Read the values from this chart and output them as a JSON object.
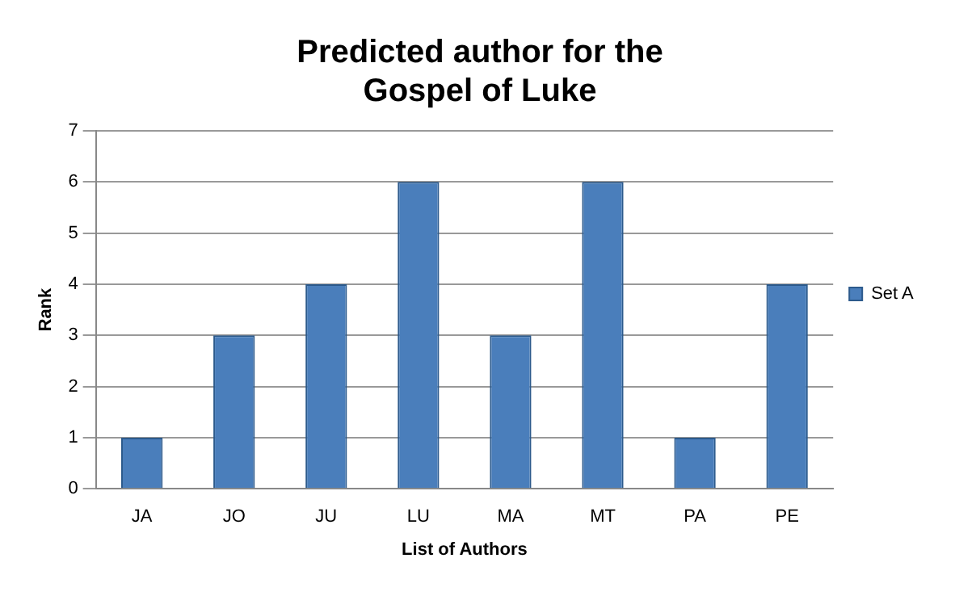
{
  "chart_data": {
    "type": "bar",
    "title": "Predicted author for the Gospel of Luke",
    "xlabel": "List of Authors",
    "ylabel": "Rank",
    "categories": [
      "JA",
      "JO",
      "JU",
      "LU",
      "MA",
      "MT",
      "PA",
      "PE"
    ],
    "series": [
      {
        "name": "Set A",
        "color": "#4a7ebb",
        "values": [
          1,
          3,
          4,
          6,
          3,
          6,
          1,
          4
        ]
      }
    ],
    "ylim": [
      0,
      7
    ],
    "yticks": [
      0,
      1,
      2,
      3,
      4,
      5,
      6,
      7
    ],
    "grid": "y",
    "legend": "right"
  }
}
